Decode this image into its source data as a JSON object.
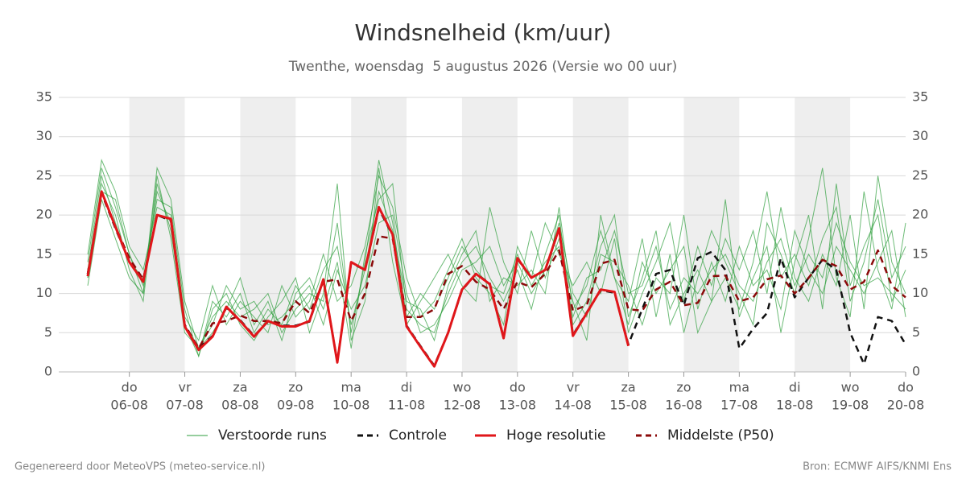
{
  "chart_data": {
    "type": "line",
    "title": "Windsnelheid (km/uur)",
    "subtitle": "Twenthe, woensdag  5 augustus 2026 (Versie wo 00 uur)",
    "footer_left": "Gegenereerd door MeteoVPS (meteo-service.nl)",
    "footer_right": "Bron: ECMWF AIFS/KNMI Ens",
    "categories": [
      null,
      null,
      null,
      "06-08",
      null,
      null,
      null,
      "07-08",
      null,
      null,
      null,
      "08-08",
      null,
      null,
      null,
      "09-08",
      null,
      null,
      null,
      "10-08",
      null,
      null,
      null,
      "11-08",
      null,
      null,
      null,
      "12-08",
      null,
      null,
      null,
      "13-08",
      null,
      null,
      null,
      "14-08",
      null,
      null,
      null,
      "15-08",
      null,
      null,
      null,
      "16-08",
      null,
      null,
      null,
      "17-08",
      null,
      null,
      null,
      "18-08",
      null,
      null,
      null,
      "19-08",
      null,
      null,
      null,
      "20-08"
    ],
    "weekdays": [
      null,
      null,
      null,
      "do",
      null,
      null,
      null,
      "vr",
      null,
      null,
      null,
      "za",
      null,
      null,
      null,
      "zo",
      null,
      null,
      null,
      "ma",
      null,
      null,
      null,
      "di",
      null,
      null,
      null,
      "wo",
      null,
      null,
      null,
      "do",
      null,
      null,
      null,
      "vr",
      null,
      null,
      null,
      "za",
      null,
      null,
      null,
      "zo",
      null,
      null,
      null,
      "ma",
      null,
      null,
      null,
      "di",
      null,
      null,
      null,
      "wo",
      null,
      null,
      null,
      "do"
    ],
    "ylim": [
      0,
      35
    ],
    "yticks": [
      0,
      5,
      10,
      15,
      20,
      25,
      30,
      35
    ],
    "grid": true,
    "shading": "#eeeeee",
    "series": [
      {
        "name": "Verstoorde runs",
        "color": "#2e9e3c",
        "style": "solid",
        "members": [
          [
            14,
            26,
            21,
            15,
            10,
            26,
            22,
            9,
            3,
            5,
            8,
            12,
            6,
            9,
            4,
            10,
            12,
            8,
            14,
            3,
            15,
            22,
            24,
            8,
            6,
            5,
            10,
            14,
            16,
            12,
            9,
            13,
            8,
            15,
            20,
            6,
            9,
            16,
            20,
            7,
            12,
            18,
            6,
            10,
            13,
            9,
            22,
            7,
            12,
            16,
            5,
            14,
            20,
            8,
            24,
            11,
            16,
            20,
            9,
            13
          ],
          [
            12,
            24,
            20,
            13,
            9,
            24,
            18,
            6,
            2,
            8,
            10,
            6,
            4,
            7,
            9,
            12,
            5,
            10,
            24,
            4,
            9,
            26,
            14,
            6,
            9,
            12,
            15,
            11,
            9,
            21,
            14,
            10,
            18,
            12,
            17,
            9,
            4,
            20,
            12,
            9,
            17,
            7,
            15,
            5,
            12,
            18,
            14,
            10,
            6,
            19,
            15,
            10,
            17,
            26,
            12,
            7,
            23,
            13,
            8,
            19
          ],
          [
            15,
            27,
            23,
            16,
            13,
            21,
            20,
            7,
            4,
            11,
            6,
            9,
            7,
            5,
            11,
            7,
            9,
            15,
            9,
            11,
            16,
            25,
            21,
            12,
            7,
            9,
            13,
            17,
            12,
            10,
            6,
            16,
            12,
            19,
            15,
            11,
            14,
            10,
            17,
            5,
            10,
            14,
            19,
            9,
            16,
            11,
            17,
            13,
            18,
            10,
            21,
            12,
            9,
            15,
            11,
            20,
            8,
            25,
            14,
            10
          ],
          [
            11,
            22,
            17,
            12,
            10,
            25,
            17,
            5,
            3,
            6,
            11,
            8,
            9,
            6,
            7,
            9,
            11,
            6,
            13,
            8,
            11,
            19,
            20,
            10,
            5,
            6,
            9,
            13,
            14,
            16,
            11,
            14,
            10,
            13,
            19,
            10,
            7,
            15,
            14,
            11,
            6,
            12,
            10,
            20,
            8,
            14,
            9,
            16,
            11,
            13,
            8,
            18,
            13,
            10,
            16,
            13,
            10,
            14,
            18,
            7
          ],
          [
            13,
            25,
            19,
            14,
            12,
            22,
            21,
            8,
            2,
            9,
            7,
            10,
            5,
            8,
            6,
            11,
            8,
            13,
            16,
            6,
            13,
            23,
            18,
            9,
            8,
            4,
            11,
            15,
            18,
            9,
            12,
            11,
            13,
            10,
            21,
            8,
            11,
            18,
            12,
            6,
            14,
            10,
            13,
            16,
            5,
            9,
            12,
            8,
            14,
            23,
            12,
            15,
            11,
            17,
            21,
            9,
            14,
            22,
            12,
            16
          ],
          [
            12,
            23,
            22,
            15,
            11,
            23,
            19,
            6,
            3,
            7,
            9,
            7,
            8,
            10,
            5,
            8,
            10,
            9,
            19,
            5,
            14,
            27,
            19,
            7,
            10,
            8,
            12,
            16,
            13,
            11,
            10,
            15,
            11,
            14,
            16,
            7,
            12,
            13,
            18,
            10,
            11,
            16,
            8,
            12,
            10,
            13,
            15,
            11,
            9,
            14,
            17,
            11,
            15,
            12,
            19,
            14,
            11,
            12,
            10,
            8
          ]
        ]
      },
      {
        "name": "Controle",
        "color": "#111111",
        "style": "dashed",
        "values": [
          12.5,
          22.8,
          18.3,
          14,
          11.7,
          20,
          19.3,
          6,
          3,
          4.6,
          8.2,
          6.6,
          4.6,
          6.4,
          5.9,
          5.9,
          6.4,
          11.7,
          1.3,
          13.9,
          13,
          20.8,
          17.4,
          5.9,
          3.3,
          0.8,
          5,
          10.4,
          12.5,
          11.3,
          4.4,
          14.4,
          12,
          13,
          18.2,
          4.7,
          7.6,
          10.4,
          10.1,
          3.5,
          8,
          12.5,
          13,
          8.5,
          14.5,
          15.3,
          13,
          3,
          5.5,
          7.5,
          14.5,
          9.5,
          12,
          14.3,
          13,
          5,
          1,
          7,
          6.5,
          3.5
        ]
      },
      {
        "name": "Hoge resolutie",
        "color": "#e0161a",
        "style": "solid",
        "values": [
          12.2,
          23,
          18.5,
          14,
          11.5,
          20,
          19.5,
          5.8,
          2.8,
          4.5,
          8.3,
          6.5,
          4.5,
          6.5,
          5.8,
          5.8,
          6.5,
          11.8,
          1.2,
          14,
          13,
          21,
          17.5,
          5.8,
          3.2,
          0.7,
          5,
          10.5,
          12.5,
          11.2,
          4.3,
          14.5,
          12,
          13,
          18.3,
          4.6,
          7.5,
          10.5,
          10.2,
          3.3,
          null,
          null,
          null,
          null,
          null,
          null,
          null,
          null,
          null,
          null,
          null,
          null,
          null,
          null,
          null,
          null,
          null,
          null,
          null,
          null
        ]
      },
      {
        "name": "Middelste (P50)",
        "color": "#8b0a0a",
        "style": "dashed",
        "values": [
          12.5,
          22.8,
          18.5,
          14.5,
          11.8,
          20,
          19.5,
          6,
          3,
          6.2,
          6.5,
          7.2,
          6.5,
          6.5,
          6.2,
          9,
          7.5,
          11.5,
          11.8,
          6.5,
          10,
          17.3,
          17,
          7,
          7,
          8,
          12.5,
          13.5,
          11.5,
          10.5,
          8,
          11.5,
          10.8,
          12.5,
          15.5,
          7.8,
          8.5,
          13.8,
          14.3,
          8,
          7.8,
          10.5,
          11.5,
          8.5,
          8.8,
          12.2,
          12.3,
          9,
          9.5,
          11.8,
          12.3,
          10,
          12,
          14.3,
          13.5,
          10.5,
          11.5,
          15.5,
          11,
          9.5
        ]
      }
    ]
  }
}
